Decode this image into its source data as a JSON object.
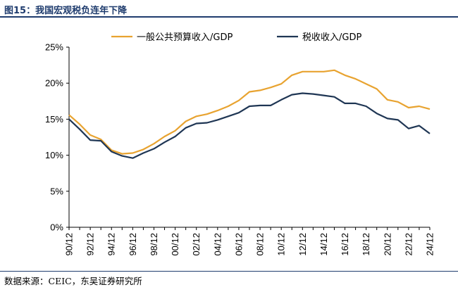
{
  "figure_title": "图15：我国宏观税负连年下降",
  "source_note": "数据来源：CEIC，东吴证券研究所",
  "colors": {
    "general_budget": "#e8a330",
    "tax": "#1f3654",
    "title": "#1f3c6e"
  },
  "chart_data": {
    "type": "line",
    "title": "",
    "xlabel": "",
    "ylabel": "",
    "ylim": [
      0,
      25
    ],
    "yticks": [
      "0%",
      "5%",
      "10%",
      "15%",
      "20%",
      "25%"
    ],
    "legend_position": "top",
    "grid": false,
    "x": [
      "90/12",
      "91/12",
      "92/12",
      "93/12",
      "94/12",
      "95/12",
      "96/12",
      "97/12",
      "98/12",
      "99/12",
      "00/12",
      "01/12",
      "02/12",
      "03/12",
      "04/12",
      "05/12",
      "06/12",
      "07/12",
      "08/12",
      "09/12",
      "10/12",
      "11/12",
      "12/12",
      "13/12",
      "14/12",
      "15/12",
      "16/12",
      "17/12",
      "18/12",
      "19/12",
      "20/12",
      "21/12",
      "22/12",
      "23/12",
      "24/12"
    ],
    "xtick_labels": [
      "90/12",
      "92/12",
      "94/12",
      "96/12",
      "98/12",
      "00/12",
      "02/12",
      "04/12",
      "06/12",
      "08/12",
      "10/12",
      "12/12",
      "14/12",
      "16/12",
      "18/12",
      "20/12",
      "22/12",
      "24/12"
    ],
    "series": [
      {
        "name": "一般公共预算收入/GDP",
        "values": [
          15.6,
          14.3,
          12.8,
          12.2,
          10.7,
          10.2,
          10.3,
          10.8,
          11.6,
          12.6,
          13.4,
          14.7,
          15.4,
          15.7,
          16.2,
          16.8,
          17.6,
          18.8,
          19.0,
          19.4,
          19.9,
          21.1,
          21.6,
          21.6,
          21.6,
          21.8,
          21.1,
          20.6,
          19.9,
          19.2,
          17.7,
          17.4,
          16.6,
          16.8,
          16.4
        ]
      },
      {
        "name": "税收收入/GDP",
        "values": [
          15.0,
          13.6,
          12.1,
          12.0,
          10.5,
          9.9,
          9.6,
          10.3,
          10.9,
          11.8,
          12.6,
          13.8,
          14.4,
          14.5,
          14.9,
          15.4,
          15.9,
          16.8,
          16.9,
          16.9,
          17.7,
          18.4,
          18.6,
          18.5,
          18.3,
          18.1,
          17.2,
          17.2,
          16.8,
          15.8,
          15.1,
          14.9,
          13.7,
          14.1,
          13.0
        ]
      }
    ]
  }
}
